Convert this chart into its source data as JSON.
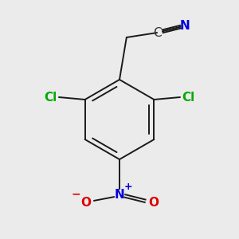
{
  "background_color": "#ebebeb",
  "bond_color": "#1a1a1a",
  "atom_colors": {
    "C": "#333333",
    "N_nitrile": "#0000dd",
    "N_nitro": "#0000dd",
    "Cl": "#00aa00",
    "O": "#dd0000",
    "plus": "#0000dd",
    "minus": "#dd0000"
  },
  "font_size_atom": 11,
  "lw": 1.4
}
